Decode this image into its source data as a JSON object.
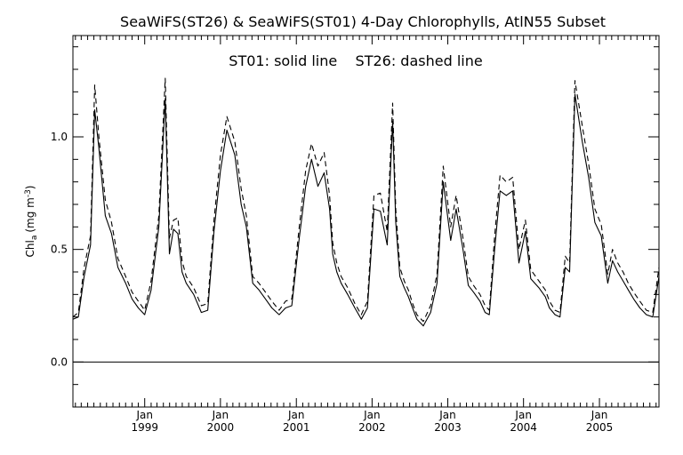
{
  "chart_data": {
    "type": "line",
    "title": "SeaWiFS(ST26) & SeaWiFS(ST01) 4-Day Chlorophylls, AtlN55 Subset",
    "annotation": "ST01: solid line    ST26: dashed line",
    "ylabel_main": "Chl",
    "ylabel_sub": "a",
    "ylabel_unit": "(mg m",
    "ylabel_sup": "-3",
    "ylabel_close": ")",
    "xlim": [
      "1998-01-20",
      "2005-10-15"
    ],
    "ylim": [
      -0.2,
      1.45
    ],
    "yticks_major": [
      {
        "value": 0.0,
        "label": "0.0"
      },
      {
        "value": 0.5,
        "label": "0.5"
      },
      {
        "value": 1.0,
        "label": "1.0"
      }
    ],
    "yticks_minor": [
      -0.2,
      -0.1,
      0.1,
      0.2,
      0.3,
      0.4,
      0.6,
      0.7,
      0.8,
      0.9,
      1.1,
      1.2,
      1.3,
      1.4
    ],
    "xticks": [
      {
        "x": "1999-01-01",
        "month": "Jan",
        "year": "1999"
      },
      {
        "x": "2000-01-01",
        "month": "Jan",
        "year": "2000"
      },
      {
        "x": "2001-01-01",
        "month": "Jan",
        "year": "2001"
      },
      {
        "x": "2002-01-01",
        "month": "Jan",
        "year": "2002"
      },
      {
        "x": "2003-01-01",
        "month": "Jan",
        "year": "2003"
      },
      {
        "x": "2004-01-01",
        "month": "Jan",
        "year": "2004"
      },
      {
        "x": "2005-01-01",
        "month": "Jan",
        "year": "2005"
      }
    ],
    "reference_line_y": 0.0,
    "series": [
      {
        "name": "ST01",
        "style": "solid",
        "color": "#000000",
        "x": [
          "1998-01-20",
          "1998-02-15",
          "1998-03-15",
          "1998-04-15",
          "1998-05-05",
          "1998-05-25",
          "1998-06-25",
          "1998-07-25",
          "1998-08-25",
          "1998-10-01",
          "1998-11-01",
          "1998-12-01",
          "1999-01-01",
          "1999-02-01",
          "1999-03-10",
          "1999-04-10",
          "1999-04-30",
          "1999-05-20",
          "1999-06-10",
          "1999-06-30",
          "1999-07-20",
          "1999-08-25",
          "1999-10-01",
          "1999-11-01",
          "1999-12-01",
          "2000-01-01",
          "2000-02-01",
          "2000-03-10",
          "2000-04-10",
          "2000-05-05",
          "2000-06-05",
          "2000-07-05",
          "2000-08-05",
          "2000-09-05",
          "2000-10-10",
          "2000-11-10",
          "2000-12-10",
          "2001-01-15",
          "2001-02-15",
          "2001-03-15",
          "2001-04-15",
          "2001-05-15",
          "2001-06-10",
          "2001-06-25",
          "2001-07-15",
          "2001-08-05",
          "2001-09-05",
          "2001-10-10",
          "2001-11-10",
          "2001-12-10",
          "2002-01-10",
          "2002-02-10",
          "2002-03-15",
          "2002-04-10",
          "2002-04-25",
          "2002-05-15",
          "2002-06-05",
          "2002-06-25",
          "2002-07-15",
          "2002-08-05",
          "2002-09-05",
          "2002-10-10",
          "2002-11-10",
          "2002-12-10",
          "2003-01-15",
          "2003-02-10",
          "2003-03-15",
          "2003-04-10",
          "2003-05-05",
          "2003-06-05",
          "2003-06-30",
          "2003-07-20",
          "2003-08-15",
          "2003-09-10",
          "2003-10-10",
          "2003-11-10",
          "2003-12-10",
          "2004-01-10",
          "2004-02-05",
          "2004-03-15",
          "2004-04-15",
          "2004-05-05",
          "2004-06-01",
          "2004-06-25",
          "2004-07-20",
          "2004-08-10",
          "2004-09-05",
          "2004-10-10",
          "2004-11-10",
          "2004-12-10",
          "2005-01-10",
          "2005-02-10",
          "2005-03-05",
          "2005-03-30",
          "2005-04-25",
          "2005-05-20",
          "2005-06-15",
          "2005-07-15",
          "2005-08-15",
          "2005-09-15",
          "2005-10-15"
        ],
        "y": [
          0.19,
          0.2,
          0.38,
          0.52,
          1.12,
          0.95,
          0.65,
          0.57,
          0.42,
          0.35,
          0.28,
          0.24,
          0.21,
          0.32,
          0.6,
          1.17,
          0.48,
          0.59,
          0.57,
          0.4,
          0.35,
          0.3,
          0.22,
          0.23,
          0.58,
          0.85,
          1.03,
          0.92,
          0.7,
          0.6,
          0.35,
          0.32,
          0.28,
          0.24,
          0.21,
          0.24,
          0.25,
          0.55,
          0.78,
          0.9,
          0.78,
          0.84,
          0.68,
          0.48,
          0.4,
          0.35,
          0.3,
          0.24,
          0.19,
          0.24,
          0.68,
          0.67,
          0.52,
          1.07,
          0.62,
          0.38,
          0.33,
          0.29,
          0.24,
          0.19,
          0.16,
          0.22,
          0.35,
          0.8,
          0.54,
          0.68,
          0.5,
          0.34,
          0.31,
          0.27,
          0.22,
          0.21,
          0.5,
          0.76,
          0.74,
          0.76,
          0.44,
          0.58,
          0.37,
          0.33,
          0.29,
          0.24,
          0.21,
          0.2,
          0.42,
          0.4,
          1.19,
          0.98,
          0.82,
          0.62,
          0.56,
          0.35,
          0.45,
          0.4,
          0.36,
          0.32,
          0.28,
          0.24,
          0.21,
          0.2,
          0.38
        ],
        "_comment": ""
      },
      {
        "name": "ST26",
        "style": "dashed",
        "color": "#000000",
        "x": [
          "1998-01-20",
          "1998-02-15",
          "1998-03-15",
          "1998-04-15",
          "1998-05-05",
          "1998-05-25",
          "1998-06-25",
          "1998-07-25",
          "1998-08-25",
          "1998-10-01",
          "1998-11-01",
          "1998-12-01",
          "1999-01-01",
          "1999-02-01",
          "1999-03-10",
          "1999-04-10",
          "1999-04-30",
          "1999-05-20",
          "1999-06-10",
          "1999-06-30",
          "1999-07-20",
          "1999-08-25",
          "1999-10-01",
          "1999-11-01",
          "1999-12-01",
          "2000-01-01",
          "2000-02-01",
          "2000-03-10",
          "2000-04-10",
          "2000-05-05",
          "2000-06-05",
          "2000-07-05",
          "2000-08-05",
          "2000-09-05",
          "2000-10-10",
          "2000-11-10",
          "2000-12-10",
          "2001-01-15",
          "2001-02-15",
          "2001-03-15",
          "2001-04-15",
          "2001-05-15",
          "2001-06-10",
          "2001-06-25",
          "2001-07-15",
          "2001-08-05",
          "2001-09-05",
          "2001-10-10",
          "2001-11-10",
          "2001-12-10",
          "2002-01-10",
          "2002-02-10",
          "2002-03-15",
          "2002-04-10",
          "2002-04-25",
          "2002-05-15",
          "2002-06-05",
          "2002-06-25",
          "2002-07-15",
          "2002-08-05",
          "2002-09-05",
          "2002-10-10",
          "2002-11-10",
          "2002-12-10",
          "2003-01-15",
          "2003-02-10",
          "2003-03-15",
          "2003-04-10",
          "2003-05-05",
          "2003-06-05",
          "2003-06-30",
          "2003-07-20",
          "2003-08-15",
          "2003-09-10",
          "2003-10-10",
          "2003-11-10",
          "2003-12-10",
          "2004-01-10",
          "2004-02-05",
          "2004-03-15",
          "2004-04-15",
          "2004-05-05",
          "2004-06-01",
          "2004-06-25",
          "2004-07-20",
          "2004-08-10",
          "2004-09-05",
          "2004-10-10",
          "2004-11-10",
          "2004-12-10",
          "2005-01-10",
          "2005-02-10",
          "2005-03-05",
          "2005-03-30",
          "2005-04-25",
          "2005-05-20",
          "2005-06-15",
          "2005-07-15",
          "2005-08-15",
          "2005-09-15",
          "2005-10-15"
        ],
        "y": [
          0.2,
          0.22,
          0.42,
          0.56,
          1.23,
          1.0,
          0.72,
          0.62,
          0.46,
          0.38,
          0.31,
          0.27,
          0.23,
          0.36,
          0.65,
          1.26,
          0.55,
          0.63,
          0.64,
          0.45,
          0.38,
          0.33,
          0.25,
          0.26,
          0.63,
          0.92,
          1.09,
          0.98,
          0.77,
          0.65,
          0.38,
          0.35,
          0.31,
          0.27,
          0.23,
          0.27,
          0.28,
          0.6,
          0.85,
          0.97,
          0.87,
          0.93,
          0.74,
          0.53,
          0.44,
          0.38,
          0.33,
          0.26,
          0.21,
          0.27,
          0.74,
          0.75,
          0.58,
          1.15,
          0.68,
          0.42,
          0.36,
          0.32,
          0.26,
          0.21,
          0.18,
          0.25,
          0.39,
          0.87,
          0.6,
          0.74,
          0.55,
          0.38,
          0.34,
          0.3,
          0.25,
          0.23,
          0.56,
          0.83,
          0.8,
          0.82,
          0.5,
          0.63,
          0.41,
          0.36,
          0.32,
          0.27,
          0.23,
          0.22,
          0.47,
          0.44,
          1.25,
          1.05,
          0.88,
          0.68,
          0.61,
          0.39,
          0.5,
          0.44,
          0.4,
          0.35,
          0.31,
          0.27,
          0.23,
          0.22,
          0.42
        ]
      }
    ]
  }
}
